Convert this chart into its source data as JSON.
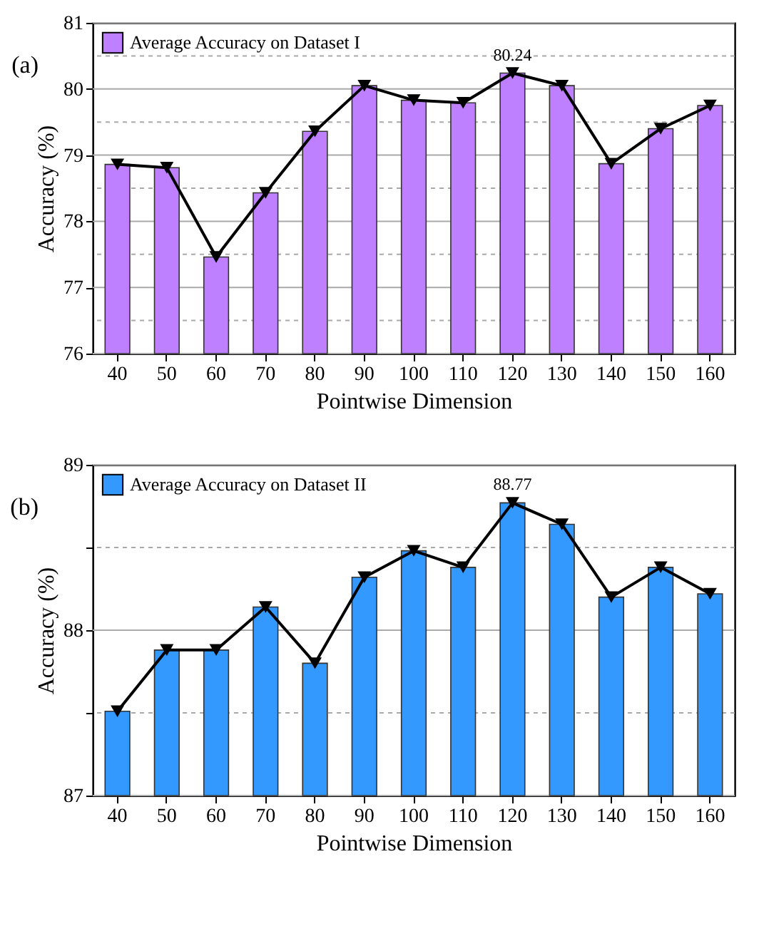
{
  "chart_data": [
    {
      "type": "bar",
      "annotations": [
        "(a)",
        {
          "text": "80.24",
          "x": "120",
          "y": 80.24
        }
      ],
      "xlabel": "Pointwise Dimension",
      "ylabel": "Accuracy (%)",
      "categories": [
        "40",
        "50",
        "60",
        "70",
        "80",
        "90",
        "100",
        "110",
        "120",
        "130",
        "140",
        "150",
        "160"
      ],
      "series": [
        {
          "name": "Average Accuracy on Dataset I",
          "color": "#bf80ff",
          "values": [
            78.86,
            78.81,
            77.46,
            78.43,
            79.36,
            80.05,
            79.83,
            79.79,
            80.24,
            80.05,
            78.87,
            79.4,
            79.75
          ]
        },
        {
          "type": "line",
          "color": "#000000",
          "marker": "triangle",
          "values": [
            78.86,
            78.81,
            77.46,
            78.43,
            79.36,
            80.05,
            79.83,
            79.79,
            80.24,
            80.05,
            78.87,
            79.4,
            79.75
          ]
        }
      ],
      "ylim": [
        76,
        81
      ],
      "yticks": [
        76,
        {
          "value": 76.5,
          "label": null
        },
        77,
        {
          "value": 77.5,
          "label": null
        },
        78,
        {
          "value": 78.5,
          "label": null
        },
        79,
        {
          "value": 79.5,
          "label": null
        },
        80,
        {
          "value": 80.5,
          "label": null
        },
        81
      ],
      "grid": "y",
      "legend": "top left"
    },
    {
      "type": "bar",
      "annotations": [
        "(b)",
        {
          "text": "88.77",
          "x": "120",
          "y": 88.77
        }
      ],
      "xlabel": "Pointwise Dimension",
      "ylabel": "Accuracy (%)",
      "categories": [
        "40",
        "50",
        "60",
        "70",
        "80",
        "90",
        "100",
        "110",
        "120",
        "130",
        "140",
        "150",
        "160"
      ],
      "series": [
        {
          "name": "Average Accuracy on Dataset II",
          "color": "#3399ff",
          "values": [
            87.51,
            87.88,
            87.88,
            88.14,
            87.8,
            88.32,
            88.48,
            88.38,
            88.77,
            88.64,
            88.2,
            88.38,
            88.22
          ]
        },
        {
          "type": "line",
          "color": "#000000",
          "marker": "triangle",
          "values": [
            87.51,
            87.88,
            87.88,
            88.14,
            87.8,
            88.32,
            88.48,
            88.38,
            88.77,
            88.64,
            88.2,
            88.38,
            88.22
          ]
        }
      ],
      "ylim": [
        87,
        89
      ],
      "yticks": [
        87,
        {
          "value": 87.5,
          "label": null
        },
        88,
        {
          "value": 88.5,
          "label": null
        },
        89
      ],
      "grid": "y",
      "legend": "top left"
    }
  ]
}
